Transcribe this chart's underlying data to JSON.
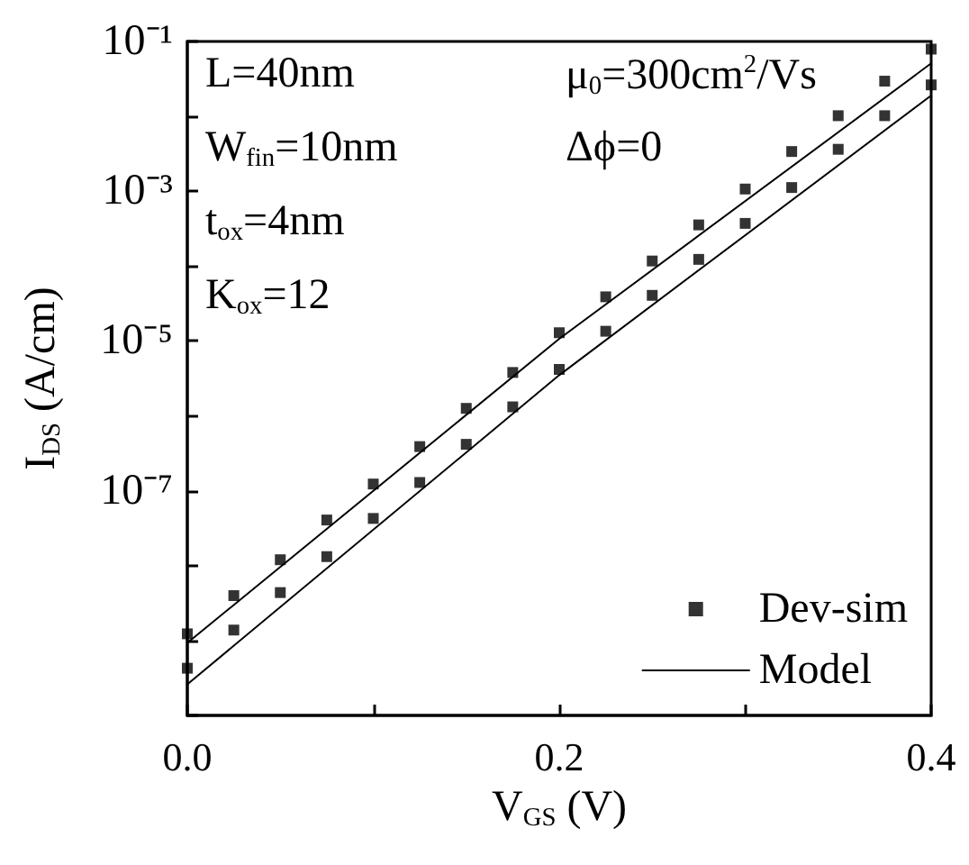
{
  "chart_data": {
    "type": "scatter",
    "xlabel": "V$_{GS}$ (V)",
    "ylabel": "I$_{DS}$ (A/cm)",
    "xlim": [
      0,
      0.4
    ],
    "xticks": [
      {
        "value": 0,
        "label": "0.0"
      },
      {
        "value": 0.1,
        "label": null
      },
      {
        "value": 0.2,
        "label": "0.2"
      },
      {
        "value": 0.3,
        "label": null
      },
      {
        "value": 0.4,
        "label": "0.4"
      }
    ],
    "ylim": [
      1e-10,
      0.1
    ],
    "log": true,
    "yticks": [
      {
        "value": 0.1,
        "label": "10⁻¹"
      },
      {
        "value": 0.01,
        "label": null
      },
      {
        "value": 0.001,
        "label": "10⁻³"
      },
      {
        "value": 0.0001,
        "label": null
      },
      {
        "value": 1e-05,
        "label": "10⁻⁵"
      },
      {
        "value": 1e-06,
        "label": null
      },
      {
        "value": 1e-07,
        "label": "10⁻⁷"
      },
      {
        "value": 1e-08,
        "label": null
      },
      {
        "value": 1e-09,
        "label": null
      },
      {
        "value": 1e-10,
        "label": null
      }
    ],
    "grid": false,
    "legend": "bottom right",
    "marker": "square",
    "annotations": [
      "L=40nm",
      "W$_{fin}$=10nm",
      "t$_{ox}$=4nm",
      "K$_{ox}$=12",
      "μ$_{0}$=300cm$^{2}$/Vs",
      "Δϕ=0"
    ],
    "x": [
      0,
      0.025,
      0.05,
      0.075,
      0.1,
      0.125,
      0.15,
      0.175,
      0.2,
      0.225,
      0.25,
      0.275,
      0.3,
      0.325,
      0.35,
      0.375,
      0.4
    ],
    "series": [
      {
        "name": "Dev-sim",
        "color": "#000000",
        "values": [
          1.23e-09,
          3.98e-09,
          1.2e-08,
          4.07e-08,
          1.23e-07,
          3.89e-07,
          1.26e-06,
          3.8e-06,
          1.29e-05,
          3.89e-05,
          0.000117,
          0.000355,
          0.00107,
          0.00339,
          0.0102,
          0.0295,
          0.079
        ]
      },
      {
        "color": "#000000",
        "values": [
          4.27e-10,
          1.38e-09,
          4.37e-09,
          1.32e-08,
          4.27e-08,
          1.29e-07,
          4.17e-07,
          1.32e-06,
          4.17e-06,
          1.35e-05,
          4.07e-05,
          0.000123,
          0.000372,
          0.00112,
          0.00363,
          0.0102,
          0.0263
        ]
      },
      {
        "name": "Model",
        "type": "line",
        "marker": "none",
        "line_style": "solid",
        "color": "#000000",
        "x": [
          0,
          0.2,
          0.4
        ],
        "values": [
          9.3e-10,
          1.07e-05,
          0.051
        ]
      },
      {
        "type": "line",
        "marker": "none",
        "line_style": "solid",
        "color": "#000000",
        "x": [
          0,
          0.2,
          0.4
        ],
        "values": [
          2.6e-10,
          3.5e-06,
          0.019
        ]
      }
    ]
  }
}
